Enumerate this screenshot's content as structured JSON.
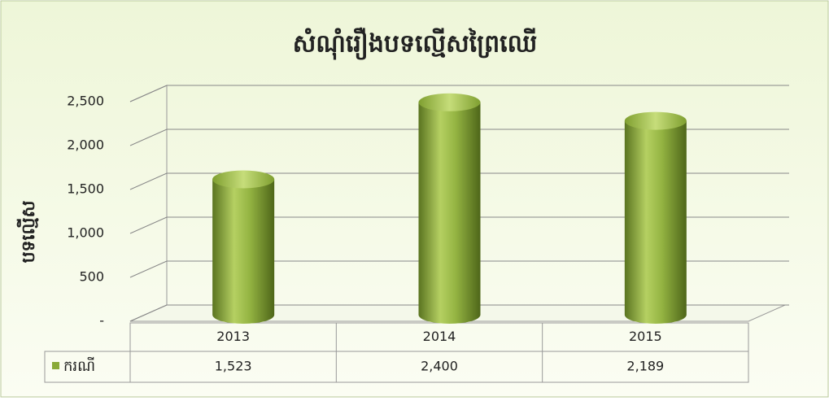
{
  "chart_data": {
    "type": "bar",
    "title": "សំណុំរឿងបទល្មើសព្រៃឈើ",
    "y_label": "បទល្មើស",
    "categories": [
      "2013",
      "2014",
      "2015"
    ],
    "series": [
      {
        "name": "ករណី",
        "color": "#8aaa38",
        "values": [
          1523,
          2400,
          2189
        ],
        "value_labels": [
          "1,523",
          "2,400",
          "2,189"
        ]
      }
    ],
    "ylim": [
      0,
      2500
    ],
    "yticks": [
      {
        "value": 0,
        "label": "-"
      },
      500,
      {
        "value": 1000,
        "label": "1,000"
      },
      {
        "value": 1500,
        "label": "1,500"
      },
      {
        "value": 2000,
        "label": "2,000"
      },
      {
        "value": 2500,
        "label": "2,500"
      }
    ],
    "grid": true
  }
}
